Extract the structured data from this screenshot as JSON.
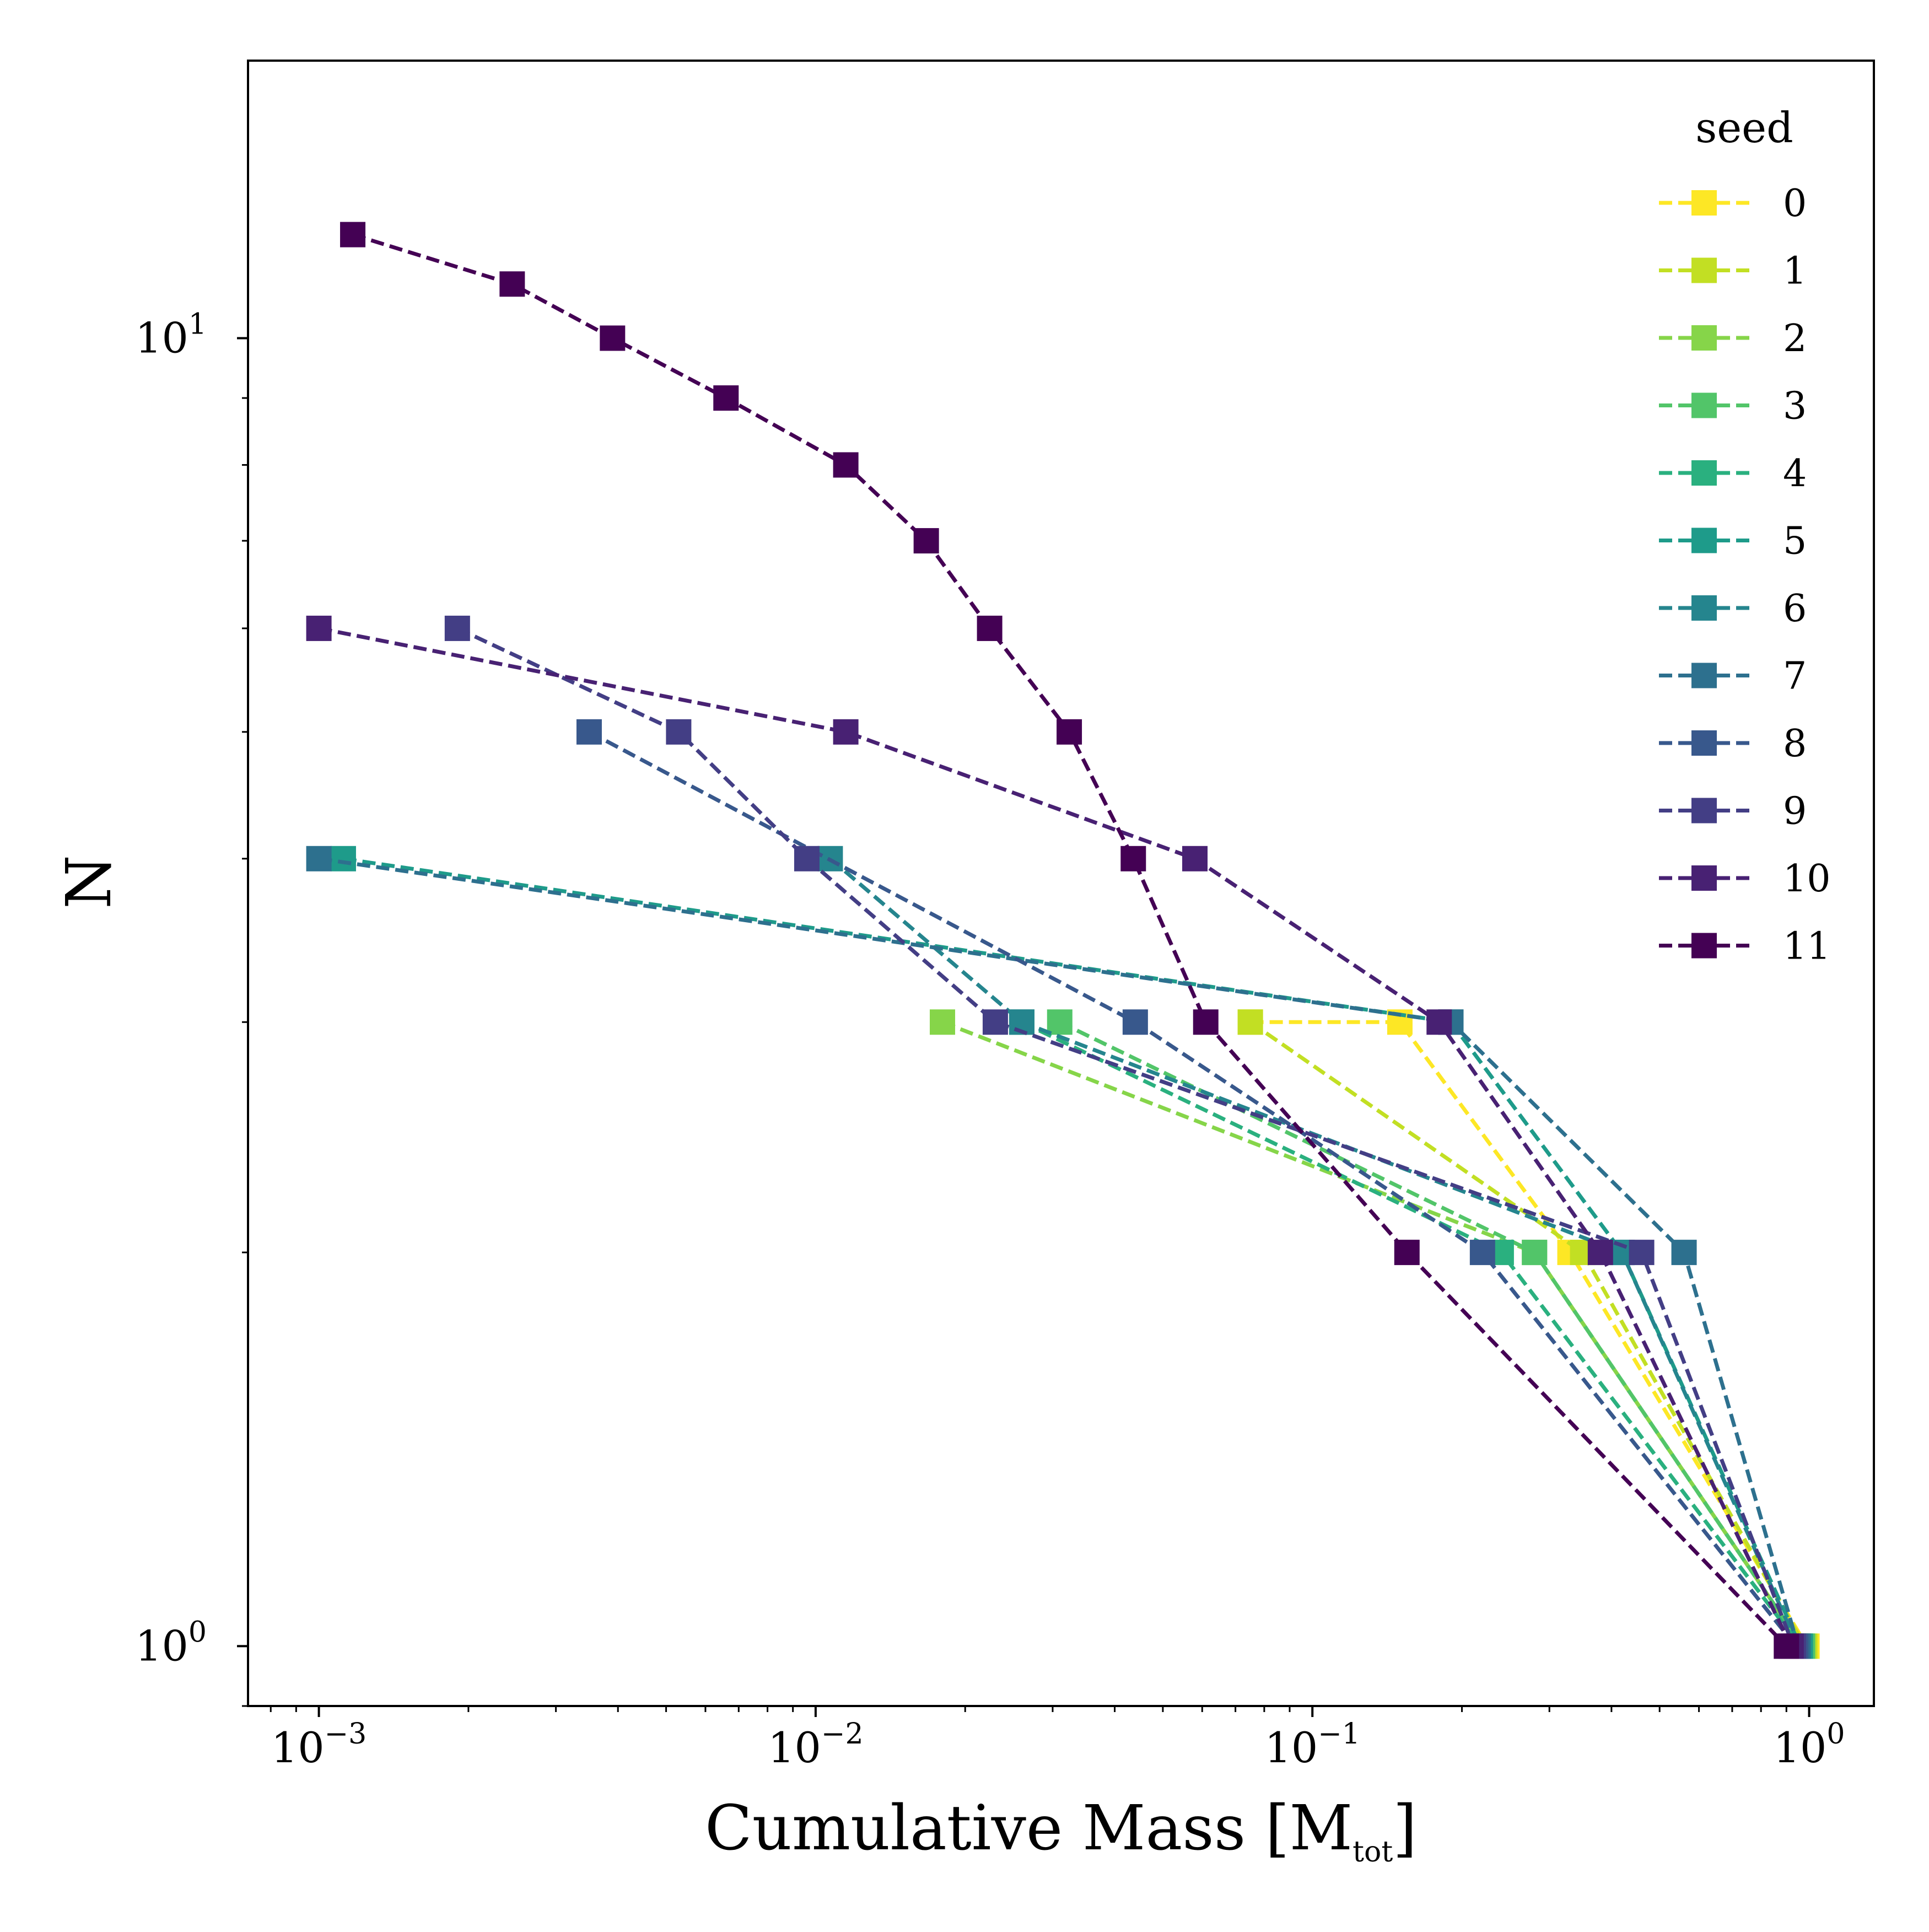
{
  "chart_data": {
    "type": "line",
    "title": "",
    "xlabel": "Cumulative Mass [M",
    "xlabel_sub": "tot",
    "xlabel_close": "]",
    "ylabel": "N",
    "xscale": "log",
    "yscale": "log",
    "xlim": [
      0.00072,
      1.35
    ],
    "ylim": [
      0.9,
      16.3
    ],
    "x_ticks": [
      {
        "value": 0.001,
        "base": "10",
        "exp": "−3"
      },
      {
        "value": 0.01,
        "base": "10",
        "exp": "−2"
      },
      {
        "value": 0.1,
        "base": "10",
        "exp": "−1"
      },
      {
        "value": 1,
        "base": "10",
        "exp": "0"
      }
    ],
    "y_ticks": [
      {
        "value": 1,
        "base": "10",
        "exp": "0"
      },
      {
        "value": 10,
        "base": "10",
        "exp": "1"
      }
    ],
    "legend": {
      "title": "seed",
      "position": "upper right"
    },
    "marker": "square",
    "linestyle": "dashed",
    "series": [
      {
        "name": "0",
        "color": "#fde725",
        "x": [
          0.075,
          0.15,
          0.33,
          0.99
        ],
        "y": [
          3,
          3,
          2,
          1
        ]
      },
      {
        "name": "1",
        "color": "#c2df23",
        "x": [
          0.075,
          0.35,
          0.98
        ],
        "y": [
          3,
          2,
          1
        ]
      },
      {
        "name": "2",
        "color": "#86d549",
        "x": [
          0.018,
          0.28,
          0.97
        ],
        "y": [
          3,
          2,
          1
        ]
      },
      {
        "name": "3",
        "color": "#52c569",
        "x": [
          0.031,
          0.28,
          0.97
        ],
        "y": [
          3,
          2,
          1
        ]
      },
      {
        "name": "4",
        "color": "#2ab07f",
        "x": [
          0.026,
          0.24,
          0.96
        ],
        "y": [
          3,
          2,
          1
        ]
      },
      {
        "name": "5",
        "color": "#1e9b8a",
        "x": [
          0.00112,
          0.19,
          0.42,
          0.96
        ],
        "y": [
          4,
          3,
          2,
          1
        ]
      },
      {
        "name": "6",
        "color": "#25858e",
        "x": [
          0.0107,
          0.026,
          0.42,
          0.95
        ],
        "y": [
          4,
          3,
          2,
          1
        ]
      },
      {
        "name": "7",
        "color": "#2d708e",
        "x": [
          0.001,
          0.19,
          0.56,
          0.95
        ],
        "y": [
          4,
          3,
          2,
          1
        ]
      },
      {
        "name": "8",
        "color": "#38588c",
        "x": [
          0.0035,
          0.044,
          0.22,
          0.94
        ],
        "y": [
          5,
          3,
          2,
          1
        ]
      },
      {
        "name": "9",
        "color": "#433e85",
        "x": [
          0.0019,
          0.0053,
          0.0096,
          0.023,
          0.46,
          0.93
        ],
        "y": [
          6,
          5,
          4,
          3,
          2,
          1
        ]
      },
      {
        "name": "10",
        "color": "#482173",
        "x": [
          0.001,
          0.0115,
          0.058,
          0.18,
          0.38,
          0.92
        ],
        "y": [
          6,
          5,
          4,
          3,
          2,
          1
        ]
      },
      {
        "name": "11",
        "color": "#440154",
        "x": [
          0.00117,
          0.00245,
          0.0039,
          0.0066,
          0.0115,
          0.0167,
          0.0224,
          0.0324,
          0.0436,
          0.061,
          0.155,
          0.9
        ],
        "y": [
          12,
          11,
          10,
          9,
          8,
          7,
          6,
          5,
          4,
          3,
          2,
          1
        ]
      }
    ]
  }
}
